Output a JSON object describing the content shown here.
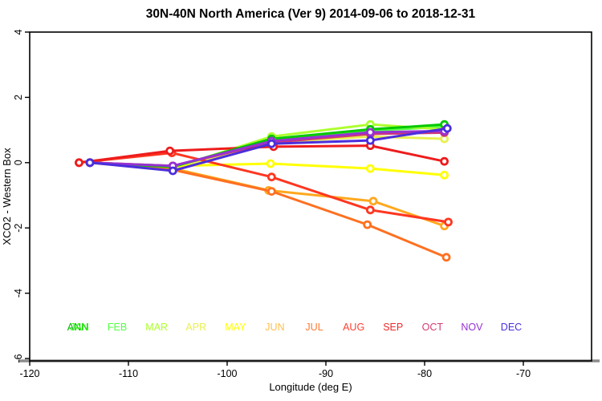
{
  "title": "30N-40N North America (Ver 9)   2014-09-06 to 2018-12-31",
  "chart_data": {
    "type": "line",
    "title": "30N-40N North America (Ver 9)   2014-09-06 to 2018-12-31",
    "xlabel": "Longitude (deg E)",
    "ylabel": "XCO2 - Western Box",
    "xlim": [
      -120,
      -63
    ],
    "ylim": [
      -6,
      4
    ],
    "x_ticks": [
      -120,
      -110,
      -100,
      -90,
      -80,
      -70
    ],
    "y_ticks": [
      -6,
      -4,
      -2,
      0,
      2,
      4
    ],
    "grid": "off",
    "baseline": {
      "y": -6,
      "color": "#8c8c8c"
    },
    "axis_color": "#000000",
    "legend_position": "bottom-inside",
    "series": [
      {
        "name": "ANN",
        "color": "#00c800",
        "points": [
          [
            -113.9,
            0
          ],
          [
            -105.5,
            -0.13
          ],
          [
            -95.5,
            0.73
          ],
          [
            -85.5,
            1.02
          ],
          [
            -78,
            1.17
          ]
        ]
      },
      {
        "name": "JAN",
        "color": "#22ff00",
        "points": []
      },
      {
        "name": "FEB",
        "color": "#55ff44",
        "points": [
          [
            -113.9,
            0
          ],
          [
            -105.5,
            -0.15
          ],
          [
            -95.5,
            0.7
          ],
          [
            -85.5,
            0.98
          ],
          [
            -78,
            1.1
          ]
        ]
      },
      {
        "name": "MAR",
        "color": "#adff2f",
        "points": [
          [
            -113.9,
            0
          ],
          [
            -105.5,
            -0.16
          ],
          [
            -95.5,
            0.8
          ],
          [
            -85.5,
            1.17
          ],
          [
            -78,
            1.02
          ]
        ]
      },
      {
        "name": "APR",
        "color": "#e8f050",
        "points": [
          [
            -113.9,
            0
          ],
          [
            -105.5,
            -0.18
          ],
          [
            -95.5,
            0.62
          ],
          [
            -85.5,
            0.8
          ],
          [
            -78,
            0.73
          ]
        ]
      },
      {
        "name": "MAY",
        "color": "#ffff00",
        "points": [
          [
            -113.9,
            0
          ],
          [
            -105.5,
            -0.1
          ],
          [
            -95.6,
            -0.03
          ],
          [
            -85.5,
            -0.18
          ],
          [
            -78,
            -0.38
          ]
        ]
      },
      {
        "name": "JUN",
        "color": "#ffa81e",
        "points": [
          [
            -113.9,
            0
          ],
          [
            -105.5,
            -0.18
          ],
          [
            -95.8,
            -0.85
          ],
          [
            -85.2,
            -1.18
          ],
          [
            -78,
            -1.94
          ]
        ]
      },
      {
        "name": "JUL",
        "color": "#ff7020",
        "points": [
          [
            -113.9,
            0
          ],
          [
            -105.5,
            -0.22
          ],
          [
            -95.5,
            -0.88
          ],
          [
            -85.8,
            -1.9
          ],
          [
            -77.8,
            -2.9
          ]
        ]
      },
      {
        "name": "AUG",
        "color": "#ff3620",
        "points": [
          [
            -115.0,
            0
          ],
          [
            -105.6,
            0.3
          ],
          [
            -95.5,
            -0.44
          ],
          [
            -85.5,
            -1.45
          ],
          [
            -77.6,
            -1.82
          ]
        ]
      },
      {
        "name": "SEP",
        "color": "#ee1c1c",
        "points": [
          [
            -115.0,
            0
          ],
          [
            -105.8,
            0.36
          ],
          [
            -95.3,
            0.49
          ],
          [
            -85.5,
            0.52
          ],
          [
            -78,
            0.04
          ]
        ]
      },
      {
        "name": "OCT",
        "color": "#ce3577",
        "points": [
          [
            -113.9,
            0
          ],
          [
            -105.5,
            -0.1
          ],
          [
            -95.5,
            0.62
          ],
          [
            -85.5,
            0.88
          ],
          [
            -78,
            0.92
          ]
        ]
      },
      {
        "name": "NOV",
        "color": "#9632d2",
        "points": [
          [
            -113.9,
            0
          ],
          [
            -105.5,
            -0.1
          ],
          [
            -95.5,
            0.66
          ],
          [
            -85.5,
            0.93
          ],
          [
            -78,
            0.97
          ]
        ]
      },
      {
        "name": "DEC",
        "color": "#4b2edc",
        "points": [
          [
            -113.9,
            0
          ],
          [
            -105.5,
            -0.25
          ],
          [
            -95.5,
            0.58
          ],
          [
            -85.5,
            0.68
          ],
          [
            -77.7,
            1.05
          ]
        ]
      }
    ],
    "month_labels": [
      {
        "label": "ANN",
        "color": "#00b400",
        "slot": 0
      },
      {
        "label": "JAN",
        "color": "#22ff00",
        "slot": 0
      },
      {
        "label": "FEB",
        "color": "#55ff44",
        "slot": 1
      },
      {
        "label": "MAR",
        "color": "#adff2f",
        "slot": 2
      },
      {
        "label": "APR",
        "color": "#e8f050",
        "slot": 3
      },
      {
        "label": "MAY",
        "color": "#ffff00",
        "slot": 4
      },
      {
        "label": "JUN",
        "color": "#ffbe4c",
        "slot": 5
      },
      {
        "label": "JUL",
        "color": "#ff7a33",
        "slot": 6
      },
      {
        "label": "AUG",
        "color": "#ff4030",
        "slot": 7
      },
      {
        "label": "SEP",
        "color": "#ee2a2a",
        "slot": 8
      },
      {
        "label": "OCT",
        "color": "#d23c73",
        "slot": 9
      },
      {
        "label": "NOV",
        "color": "#9632d2",
        "slot": 10
      },
      {
        "label": "DEC",
        "color": "#4b2edc",
        "slot": 11
      }
    ]
  }
}
